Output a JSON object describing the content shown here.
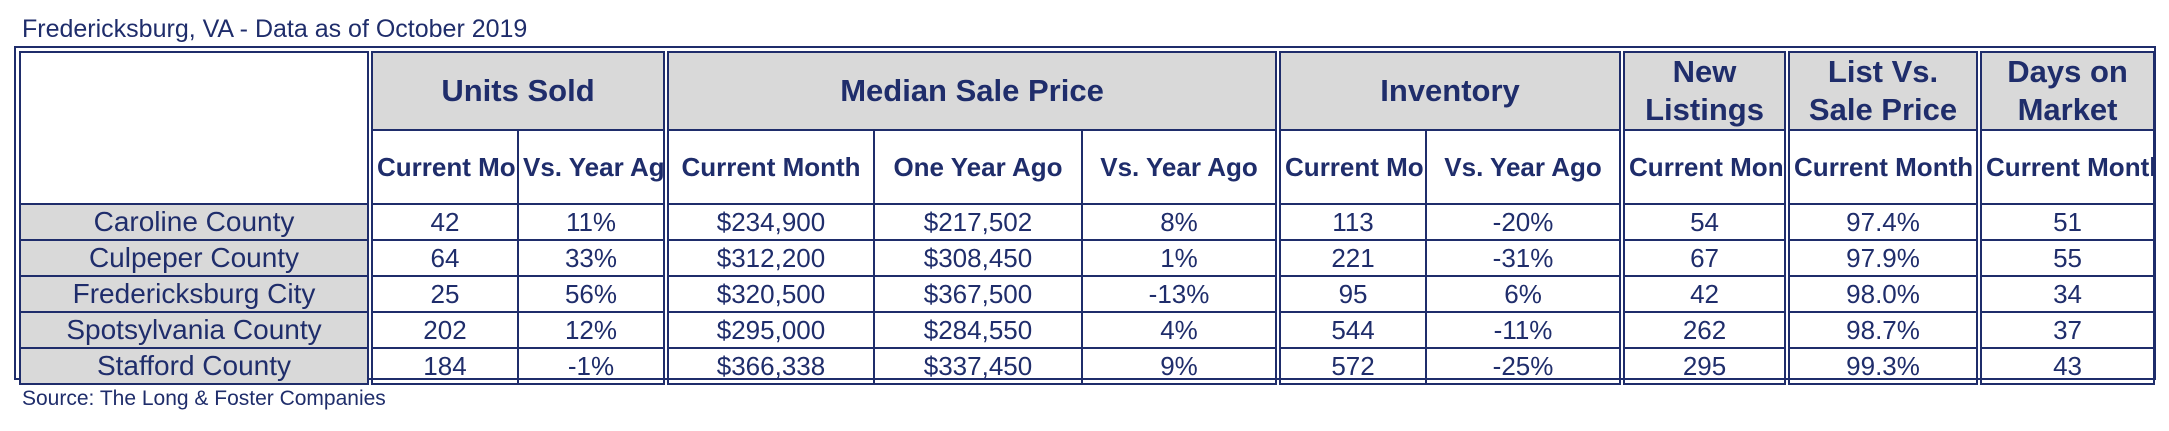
{
  "caption": "Fredericksburg, VA - Data as of October 2019",
  "source": "Source: The Long & Foster Companies",
  "groups": {
    "units_sold": "Units Sold",
    "median_sale_price": "Median Sale Price",
    "inventory": "Inventory",
    "new_listings": "New Listings",
    "list_vs_sale": "List Vs. Sale Price",
    "days_on_market": "Days on Market"
  },
  "subheaders": {
    "units_current": "Current Month",
    "units_vs_year": "Vs. Year Ago",
    "price_current": "Current Month",
    "price_year_ago": "One Year Ago",
    "price_vs_year": "Vs. Year Ago",
    "inv_current": "Current Month",
    "inv_vs_year": "Vs. Year Ago",
    "new_current": "Current Month",
    "list_current": "Current Month",
    "dom_current": "Current Month"
  },
  "rows": [
    {
      "name": "Caroline County",
      "units": "42",
      "units_vs": "11%",
      "price": "$234,900",
      "price_ya": "$217,502",
      "price_vs": "8%",
      "inv": "113",
      "inv_vs": "-20%",
      "new": "54",
      "list_sale": "97.4%",
      "dom": "51"
    },
    {
      "name": "Culpeper County",
      "units": "64",
      "units_vs": "33%",
      "price": "$312,200",
      "price_ya": "$308,450",
      "price_vs": "1%",
      "inv": "221",
      "inv_vs": "-31%",
      "new": "67",
      "list_sale": "97.9%",
      "dom": "55"
    },
    {
      "name": "Fredericksburg City",
      "units": "25",
      "units_vs": "56%",
      "price": "$320,500",
      "price_ya": "$367,500",
      "price_vs": "-13%",
      "inv": "95",
      "inv_vs": "6%",
      "new": "42",
      "list_sale": "98.0%",
      "dom": "34"
    },
    {
      "name": "Spotsylvania County",
      "units": "202",
      "units_vs": "12%",
      "price": "$295,000",
      "price_ya": "$284,550",
      "price_vs": "4%",
      "inv": "544",
      "inv_vs": "-11%",
      "new": "262",
      "list_sale": "98.7%",
      "dom": "37"
    },
    {
      "name": "Stafford County",
      "units": "184",
      "units_vs": "-1%",
      "price": "$366,338",
      "price_ya": "$337,450",
      "price_vs": "9%",
      "inv": "572",
      "inv_vs": "-25%",
      "new": "295",
      "list_sale": "99.3%",
      "dom": "43"
    }
  ]
}
